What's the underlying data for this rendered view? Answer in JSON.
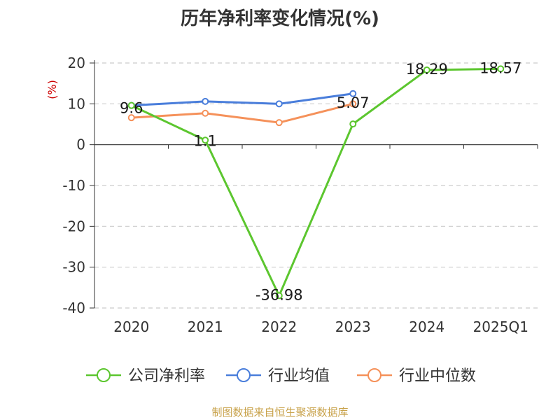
{
  "chart_data": {
    "type": "line",
    "title": "历年净利率变化情况(%)",
    "ylabel": "(%)",
    "xlabel": "",
    "categories": [
      "2020",
      "2021",
      "2022",
      "2023",
      "2024",
      "2025Q1"
    ],
    "ylim": [
      -40,
      20
    ],
    "yticks": [
      20,
      10,
      0,
      -10,
      -20,
      -30,
      -40
    ],
    "grid": true,
    "legend_position": "bottom",
    "series": [
      {
        "name": "公司净利率",
        "color": "#5cc62f",
        "values": [
          9.6,
          1.1,
          -36.98,
          5.07,
          18.29,
          18.57
        ],
        "labels": [
          "9.6",
          "1.1",
          "-36.98",
          "5.07",
          "18.29",
          "18.57"
        ]
      },
      {
        "name": "行业均值",
        "color": "#4a7edb",
        "values": [
          9.6,
          10.6,
          10.0,
          12.5,
          null,
          null
        ]
      },
      {
        "name": "行业中位数",
        "color": "#f5915a",
        "values": [
          6.6,
          7.7,
          5.4,
          10.0,
          null,
          null
        ]
      }
    ]
  },
  "source_note": "制图数据来自恒生聚源数据库"
}
